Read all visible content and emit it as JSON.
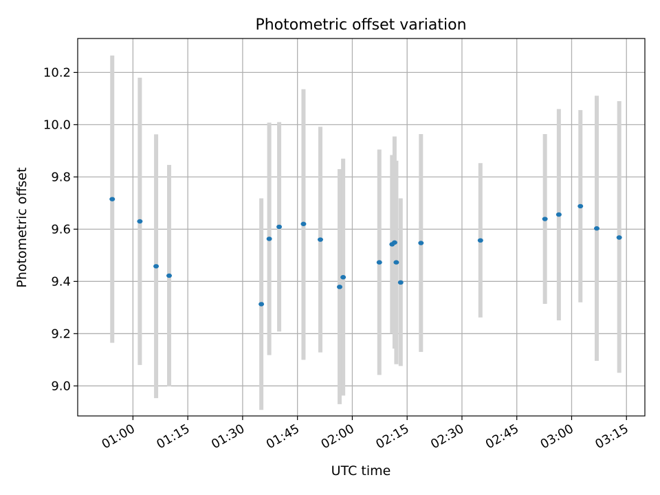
{
  "chart_data": {
    "type": "scatter",
    "title": "Photometric offset variation",
    "xlabel": "UTC time",
    "ylabel": "Photometric offset",
    "x_unit": "UTC time (HH:MM)",
    "xlim": [
      "00:44:53",
      "03:20:02"
    ],
    "ylim": [
      8.885,
      10.33
    ],
    "grid": true,
    "x_ticks": [
      "01:00",
      "01:15",
      "01:30",
      "01:45",
      "02:00",
      "02:15",
      "02:30",
      "02:45",
      "03:00",
      "03:15"
    ],
    "y_ticks": [
      "9.0",
      "9.2",
      "9.4",
      "9.6",
      "9.8",
      "10.0",
      "10.2"
    ],
    "colors": {
      "points": "#1f77b4",
      "error_bars": "#d3d3d3",
      "grid": "#b0b0b0"
    },
    "points": [
      {
        "x": "00:54:20",
        "y": 9.715,
        "lo": 9.165,
        "hi": 10.265
      },
      {
        "x": "01:01:53",
        "y": 9.63,
        "lo": 9.08,
        "hi": 10.18
      },
      {
        "x": "01:06:20",
        "y": 9.458,
        "lo": 8.953,
        "hi": 9.963
      },
      {
        "x": "01:09:54",
        "y": 9.422,
        "lo": 8.998,
        "hi": 9.846
      },
      {
        "x": "01:35:07",
        "y": 9.313,
        "lo": 8.908,
        "hi": 9.718
      },
      {
        "x": "01:37:17",
        "y": 9.563,
        "lo": 9.118,
        "hi": 10.008
      },
      {
        "x": "01:40:00",
        "y": 9.609,
        "lo": 9.208,
        "hi": 10.01
      },
      {
        "x": "01:46:39",
        "y": 9.62,
        "lo": 9.1,
        "hi": 10.136
      },
      {
        "x": "01:51:16",
        "y": 9.56,
        "lo": 9.128,
        "hi": 9.992
      },
      {
        "x": "01:56:32",
        "y": 9.379,
        "lo": 8.93,
        "hi": 9.83
      },
      {
        "x": "01:57:30",
        "y": 9.416,
        "lo": 8.963,
        "hi": 9.87
      },
      {
        "x": "02:07:24",
        "y": 9.473,
        "lo": 9.042,
        "hi": 9.905
      },
      {
        "x": "02:10:53",
        "y": 9.542,
        "lo": 9.2,
        "hi": 9.884
      },
      {
        "x": "02:11:34",
        "y": 9.549,
        "lo": 9.143,
        "hi": 9.955
      },
      {
        "x": "02:12:02",
        "y": 9.473,
        "lo": 9.083,
        "hi": 9.862
      },
      {
        "x": "02:13:14",
        "y": 9.396,
        "lo": 9.076,
        "hi": 9.718
      },
      {
        "x": "02:18:47",
        "y": 9.547,
        "lo": 9.13,
        "hi": 9.964
      },
      {
        "x": "02:35:03",
        "y": 9.557,
        "lo": 9.262,
        "hi": 9.853
      },
      {
        "x": "02:52:42",
        "y": 9.639,
        "lo": 9.314,
        "hi": 9.964
      },
      {
        "x": "02:56:30",
        "y": 9.656,
        "lo": 9.251,
        "hi": 10.06
      },
      {
        "x": "03:02:24",
        "y": 9.688,
        "lo": 9.32,
        "hi": 10.056
      },
      {
        "x": "03:06:52",
        "y": 9.603,
        "lo": 9.096,
        "hi": 10.111
      },
      {
        "x": "03:13:01",
        "y": 9.568,
        "lo": 9.05,
        "hi": 10.09
      }
    ]
  }
}
